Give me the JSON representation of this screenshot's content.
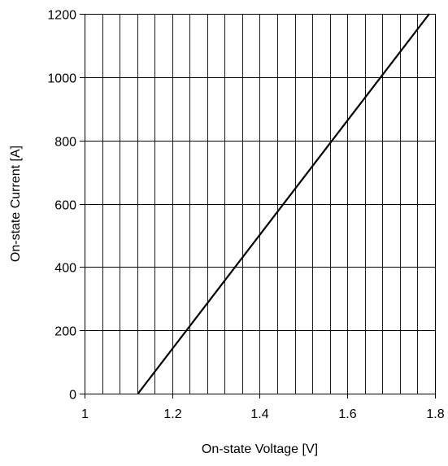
{
  "chart_data": {
    "type": "line",
    "title": "",
    "xlabel": "On-state Voltage [V]",
    "ylabel": "On-state Current [A]",
    "xlim": [
      1,
      1.8
    ],
    "ylim": [
      0,
      1200
    ],
    "x_ticks": [
      1,
      1.2,
      1.4,
      1.6,
      1.8
    ],
    "x_tick_labels": [
      "1",
      "1.2",
      "1.4",
      "1.6",
      "1.8"
    ],
    "y_ticks": [
      0,
      200,
      400,
      600,
      800,
      1000,
      1200
    ],
    "y_tick_labels": [
      "0",
      "200",
      "400",
      "600",
      "800",
      "1000",
      "1200"
    ],
    "x_minor_step": 0.04,
    "y_grid_step": 200,
    "grid": true,
    "legend": "none",
    "series": [
      {
        "x": [
          1.122,
          1.787
        ],
        "y": [
          0,
          1200
        ]
      }
    ],
    "colors": {
      "line": "#000000",
      "grid": "#000000",
      "frame": "#000000"
    }
  }
}
